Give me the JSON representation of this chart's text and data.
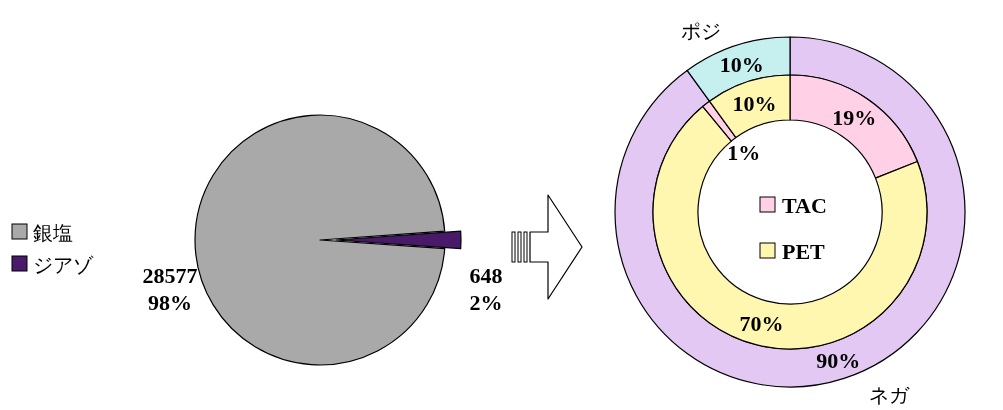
{
  "chart_data": [
    {
      "type": "pie",
      "categories": [
        "銀塩",
        "ジアゾ"
      ],
      "values": [
        28577,
        648
      ],
      "colors": [
        "#a9a9a9",
        "#4a1a6a"
      ],
      "value_labels": [
        "28577\n98%",
        "648\n2%"
      ],
      "legend": "left"
    },
    {
      "type": "donut",
      "categories": [
        "ネガ",
        "ポジ"
      ],
      "values": [
        90,
        10
      ],
      "colors": [
        "#e2c8f2",
        "#c6f0f0"
      ],
      "value_labels": [
        "90%",
        "10%"
      ]
    },
    {
      "type": "donut",
      "categories": [
        "TAC",
        "PET",
        null,
        null
      ],
      "values": [
        19,
        70,
        1,
        10
      ],
      "colors": [
        "#ffd0e6",
        "#fff6b0",
        "#ffd0e6",
        "#fff6b0"
      ],
      "value_labels": [
        "19%",
        "70%",
        "1%",
        "10%"
      ],
      "legend": "center"
    }
  ]
}
